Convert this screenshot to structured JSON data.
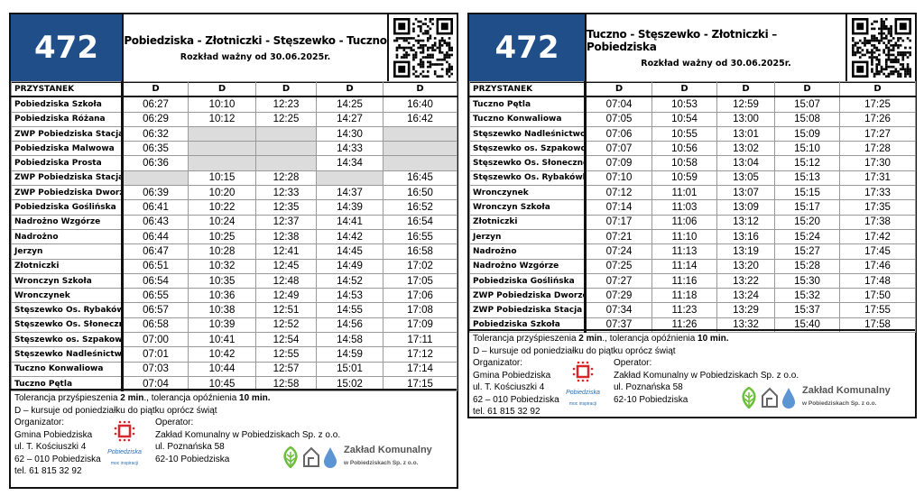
{
  "colors": {
    "route_box": "#1f4e89",
    "no_service": "#dcdcdc"
  },
  "timetables": [
    {
      "route": "472",
      "direction": "Pobiedziska - Złotniczki - Stęszewko - Tuczno",
      "valid_from": "Rozkład ważny od 30.06.2025r.",
      "qr_icon": "qr-code",
      "stop_header": "PRZYSTANEK",
      "course_marks": [
        "D",
        "D",
        "D",
        "D",
        "D"
      ],
      "rows": [
        {
          "stop": "Pobiedziska Szkoła",
          "times": [
            "06:27",
            "10:10",
            "12:23",
            "14:25",
            "16:40"
          ]
        },
        {
          "stop": "Pobiedziska Różana",
          "times": [
            "06:29",
            "10:12",
            "12:25",
            "14:27",
            "16:42"
          ]
        },
        {
          "stop": "ZWP Pobiedziska Stacja",
          "times": [
            "06:32",
            null,
            null,
            "14:30",
            null
          ]
        },
        {
          "stop": "Pobiedziska Malwowa",
          "times": [
            "06:35",
            null,
            null,
            "14:33",
            null
          ]
        },
        {
          "stop": "Pobiedziska Prosta",
          "times": [
            "06:36",
            null,
            null,
            "14:34",
            null
          ]
        },
        {
          "stop": "ZWP Pobiedziska Stacja",
          "times": [
            null,
            "10:15",
            "12:28",
            null,
            "16:45"
          ]
        },
        {
          "stop": "ZWP Pobiedziska Dworzec",
          "times": [
            "06:39",
            "10:20",
            "12:33",
            "14:37",
            "16:50"
          ]
        },
        {
          "stop": "Pobiedziska Goślińska",
          "times": [
            "06:41",
            "10:22",
            "12:35",
            "14:39",
            "16:52"
          ]
        },
        {
          "stop": "Nadrożno Wzgórze",
          "times": [
            "06:43",
            "10:24",
            "12:37",
            "14:41",
            "16:54"
          ]
        },
        {
          "stop": "Nadrożno",
          "times": [
            "06:44",
            "10:25",
            "12:38",
            "14:42",
            "16:55"
          ]
        },
        {
          "stop": "Jerzyn",
          "times": [
            "06:47",
            "10:28",
            "12:41",
            "14:45",
            "16:58"
          ]
        },
        {
          "stop": "Złotniczki",
          "times": [
            "06:51",
            "10:32",
            "12:45",
            "14:49",
            "17:02"
          ]
        },
        {
          "stop": "Wronczyn Szkoła",
          "times": [
            "06:54",
            "10:35",
            "12:48",
            "14:52",
            "17:05"
          ]
        },
        {
          "stop": "Wronczynek",
          "times": [
            "06:55",
            "10:36",
            "12:49",
            "14:53",
            "17:06"
          ]
        },
        {
          "stop": "Stęszewko Os. Rybakówka",
          "times": [
            "06:57",
            "10:38",
            "12:51",
            "14:55",
            "17:08"
          ]
        },
        {
          "stop": "Stęszewko Os. Słoneczne",
          "times": [
            "06:58",
            "10:39",
            "12:52",
            "14:56",
            "17:09"
          ]
        },
        {
          "stop": "Stęszewko os. Szpakowo",
          "times": [
            "07:00",
            "10:41",
            "12:54",
            "14:58",
            "17:11"
          ]
        },
        {
          "stop": "Stęszewko Nadleśnictwo",
          "times": [
            "07:01",
            "10:42",
            "12:55",
            "14:59",
            "17:12"
          ]
        },
        {
          "stop": "Tuczno Konwaliowa",
          "times": [
            "07:03",
            "10:44",
            "12:57",
            "15:01",
            "17:14"
          ]
        },
        {
          "stop": "Tuczno Pętla",
          "times": [
            "07:04",
            "10:45",
            "12:58",
            "15:02",
            "17:15"
          ]
        }
      ]
    },
    {
      "route": "472",
      "direction": "Tuczno - Stęszewko - Złotniczki – Pobiedziska",
      "valid_from": "Rozkład ważny od 30.06.2025r.",
      "qr_icon": "qr-code",
      "stop_header": "PRZYSTANEK",
      "course_marks": [
        "D",
        "D",
        "D",
        "D",
        "D"
      ],
      "rows": [
        {
          "stop": "Tuczno Pętla",
          "times": [
            "07:04",
            "10:53",
            "12:59",
            "15:07",
            "17:25"
          ]
        },
        {
          "stop": "Tuczno Konwaliowa",
          "times": [
            "07:05",
            "10:54",
            "13:00",
            "15:08",
            "17:26"
          ]
        },
        {
          "stop": "Stęszewko Nadleśnictwo",
          "times": [
            "07:06",
            "10:55",
            "13:01",
            "15:09",
            "17:27"
          ]
        },
        {
          "stop": "Stęszewko os. Szpakowo",
          "times": [
            "07:07",
            "10:56",
            "13:02",
            "15:10",
            "17:28"
          ]
        },
        {
          "stop": "Stęszewko Os. Słoneczne",
          "times": [
            "07:09",
            "10:58",
            "13:04",
            "15:12",
            "17:30"
          ]
        },
        {
          "stop": "Stęszewko Os. Rybakówka",
          "times": [
            "07:10",
            "10:59",
            "13:05",
            "15:13",
            "17:31"
          ]
        },
        {
          "stop": "Wronczynek",
          "times": [
            "07:12",
            "11:01",
            "13:07",
            "15:15",
            "17:33"
          ]
        },
        {
          "stop": "Wronczyn Szkoła",
          "times": [
            "07:14",
            "11:03",
            "13:09",
            "15:17",
            "17:35"
          ]
        },
        {
          "stop": "Złotniczki",
          "times": [
            "07:17",
            "11:06",
            "13:12",
            "15:20",
            "17:38"
          ]
        },
        {
          "stop": "Jerzyn",
          "times": [
            "07:21",
            "11:10",
            "13:16",
            "15:24",
            "17:42"
          ]
        },
        {
          "stop": "Nadrożno",
          "times": [
            "07:24",
            "11:13",
            "13:19",
            "15:27",
            "17:45"
          ]
        },
        {
          "stop": "Nadrożno Wzgórze",
          "times": [
            "07:25",
            "11:14",
            "13:20",
            "15:28",
            "17:46"
          ]
        },
        {
          "stop": "Pobiedziska Goślińska",
          "times": [
            "07:27",
            "11:16",
            "13:22",
            "15:30",
            "17:48"
          ]
        },
        {
          "stop": "ZWP Pobiedziska Dworzec",
          "times": [
            "07:29",
            "11:18",
            "13:24",
            "15:32",
            "17:50"
          ]
        },
        {
          "stop": "ZWP Pobiedziska Stacja",
          "times": [
            "07:34",
            "11:23",
            "13:29",
            "15:37",
            "17:55"
          ]
        },
        {
          "stop": "Pobiedziska Szkoła",
          "times": [
            "07:37",
            "11:26",
            "13:32",
            "15:40",
            "17:58"
          ]
        }
      ]
    }
  ],
  "footer": {
    "tol_a": "Tolerancja przyśpieszenia ",
    "tol_b": "2 min",
    "tol_c": "., tolerancja opóźnienia ",
    "tol_d": "10 min.",
    "legend": "D – kursuje od poniedziałku do piątku oprócz świąt",
    "organizer": [
      "Organizator:",
      "Gmina Pobiedziska",
      "ul. T. Kościuszki 4",
      "62 – 010 Pobiedziska",
      "tel. 61 815 32 92"
    ],
    "operator": [
      "Operator:",
      "Zakład Komunalny w Pobiedziskach Sp. z o.o.",
      "ul. Poznańska 58",
      "62-10 Pobiedziska"
    ],
    "logo_town": "Pobiedziska",
    "logo_town_slogan": "moc inspiracji",
    "logo_company": "Zakład Komunalny",
    "logo_company_sub": "w Pobiedziskach Sp. z o.o."
  }
}
